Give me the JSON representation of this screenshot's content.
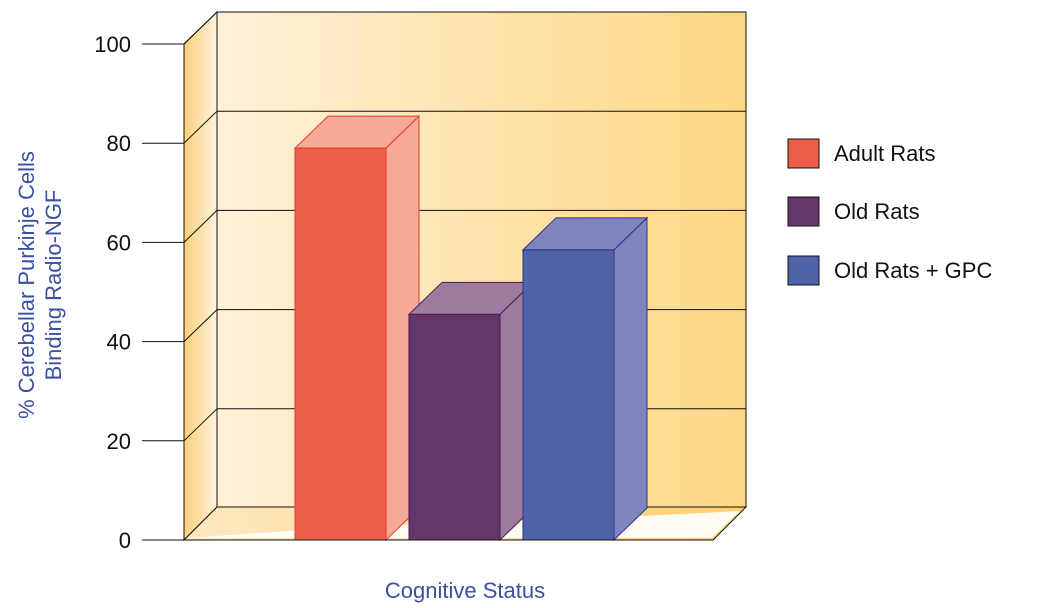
{
  "chart_data": {
    "type": "bar",
    "title": "",
    "categories": [
      "Adult Rats",
      "Old Rats",
      "Old Rats + GPC"
    ],
    "values": [
      79,
      45.5,
      58.5
    ],
    "ylim": [
      0,
      100
    ],
    "yticks": [
      0,
      20,
      40,
      60,
      80,
      100
    ],
    "xlabel": "Cognitive Status",
    "ylabel_lines": [
      "% Cerebellar Purkinje Cells",
      "Binding Radio-NGF"
    ],
    "grid": true,
    "legend_position": "right",
    "colors": [
      "#ea5e4a",
      "#643768",
      "#5062a8"
    ],
    "side_colors": [
      "#f6aa96",
      "#9b7c9e",
      "#8084be"
    ],
    "top_colors": [
      "#f6aa96",
      "#9b7c9e",
      "#8084be"
    ],
    "edge_colors": [
      "#e53a2f",
      "#4b1a57",
      "#2d3684"
    ],
    "axis_title_color": "#3c4fa4",
    "legend": [
      {
        "label": "Adult Rats",
        "color": "#ea5e4a"
      },
      {
        "label": "Old Rats",
        "color": "#643768"
      },
      {
        "label": "Old Rats + GPC",
        "color": "#5062a8"
      }
    ]
  }
}
